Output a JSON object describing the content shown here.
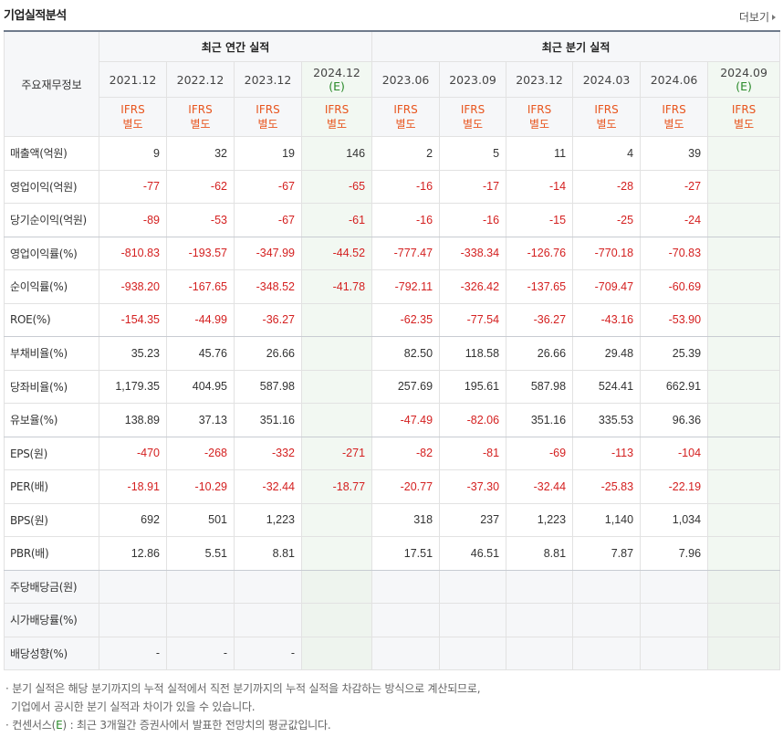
{
  "page": {
    "title": "기업실적분석",
    "more_label": "더보기"
  },
  "table": {
    "row_header": "주요재무정보",
    "annual_group": "최근 연간 실적",
    "quarter_group": "최근 분기 실적",
    "columns": [
      {
        "date": "2021.12",
        "est": "",
        "ifrs1": "IFRS",
        "ifrs2": "별도"
      },
      {
        "date": "2022.12",
        "est": "",
        "ifrs1": "IFRS",
        "ifrs2": "별도"
      },
      {
        "date": "2023.12",
        "est": "",
        "ifrs1": "IFRS",
        "ifrs2": "별도"
      },
      {
        "date": "2024.12",
        "est": "(E)",
        "ifrs1": "IFRS",
        "ifrs2": "별도"
      },
      {
        "date": "2023.06",
        "est": "",
        "ifrs1": "IFRS",
        "ifrs2": "별도"
      },
      {
        "date": "2023.09",
        "est": "",
        "ifrs1": "IFRS",
        "ifrs2": "별도"
      },
      {
        "date": "2023.12",
        "est": "",
        "ifrs1": "IFRS",
        "ifrs2": "별도"
      },
      {
        "date": "2024.03",
        "est": "",
        "ifrs1": "IFRS",
        "ifrs2": "별도"
      },
      {
        "date": "2024.06",
        "est": "",
        "ifrs1": "IFRS",
        "ifrs2": "별도"
      },
      {
        "date": "2024.09",
        "est": "(E)",
        "ifrs1": "IFRS",
        "ifrs2": "별도"
      }
    ],
    "rows": [
      {
        "label": "매출액(억원)",
        "values": [
          "9",
          "32",
          "19",
          "146",
          "2",
          "5",
          "11",
          "4",
          "39",
          ""
        ]
      },
      {
        "label": "영업이익(억원)",
        "values": [
          "-77",
          "-62",
          "-67",
          "-65",
          "-16",
          "-17",
          "-14",
          "-28",
          "-27",
          ""
        ]
      },
      {
        "label": "당기순이익(억원)",
        "values": [
          "-89",
          "-53",
          "-67",
          "-61",
          "-16",
          "-16",
          "-15",
          "-25",
          "-24",
          ""
        ]
      },
      {
        "label": "영업이익률(%)",
        "values": [
          "-810.83",
          "-193.57",
          "-347.99",
          "-44.52",
          "-777.47",
          "-338.34",
          "-126.76",
          "-770.18",
          "-70.83",
          ""
        ]
      },
      {
        "label": "순이익률(%)",
        "values": [
          "-938.20",
          "-167.65",
          "-348.52",
          "-41.78",
          "-792.11",
          "-326.42",
          "-137.65",
          "-709.47",
          "-60.69",
          ""
        ]
      },
      {
        "label": "ROE(%)",
        "values": [
          "-154.35",
          "-44.99",
          "-36.27",
          "",
          "-62.35",
          "-77.54",
          "-36.27",
          "-43.16",
          "-53.90",
          ""
        ]
      },
      {
        "label": "부채비율(%)",
        "values": [
          "35.23",
          "45.76",
          "26.66",
          "",
          "82.50",
          "118.58",
          "26.66",
          "29.48",
          "25.39",
          ""
        ]
      },
      {
        "label": "당좌비율(%)",
        "values": [
          "1,179.35",
          "404.95",
          "587.98",
          "",
          "257.69",
          "195.61",
          "587.98",
          "524.41",
          "662.91",
          ""
        ]
      },
      {
        "label": "유보율(%)",
        "values": [
          "138.89",
          "37.13",
          "351.16",
          "",
          "-47.49",
          "-82.06",
          "351.16",
          "335.53",
          "96.36",
          ""
        ]
      },
      {
        "label": "EPS(원)",
        "values": [
          "-470",
          "-268",
          "-332",
          "-271",
          "-82",
          "-81",
          "-69",
          "-113",
          "-104",
          ""
        ]
      },
      {
        "label": "PER(배)",
        "values": [
          "-18.91",
          "-10.29",
          "-32.44",
          "-18.77",
          "-20.77",
          "-37.30",
          "-32.44",
          "-25.83",
          "-22.19",
          ""
        ]
      },
      {
        "label": "BPS(원)",
        "values": [
          "692",
          "501",
          "1,223",
          "",
          "318",
          "237",
          "1,223",
          "1,140",
          "1,034",
          ""
        ]
      },
      {
        "label": "PBR(배)",
        "values": [
          "12.86",
          "5.51",
          "8.81",
          "",
          "17.51",
          "46.51",
          "8.81",
          "7.87",
          "7.96",
          ""
        ]
      },
      {
        "label": "주당배당금(원)",
        "values": [
          "",
          "",
          "",
          "",
          "",
          "",
          "",
          "",
          "",
          ""
        ]
      },
      {
        "label": "시가배당률(%)",
        "values": [
          "",
          "",
          "",
          "",
          "",
          "",
          "",
          "",
          "",
          ""
        ]
      },
      {
        "label": "배당성향(%)",
        "values": [
          "-",
          "-",
          "-",
          "",
          "",
          "",
          "",
          "",
          "",
          ""
        ]
      }
    ]
  },
  "notes": {
    "line1": "분기 실적은 해당 분기까지의 누적 실적에서 직전 분기까지의 누적 실적을 차감하는 방식으로 계산되므로,",
    "line2": "기업에서 공시한 분기 실적과 차이가 있을 수 있습니다.",
    "line3_prefix": "컨센서스(",
    "line3_est": "E",
    "line3_suffix": ") : 최근 3개월간 증권사에서 발표한 전망치의 평균값입니다."
  }
}
